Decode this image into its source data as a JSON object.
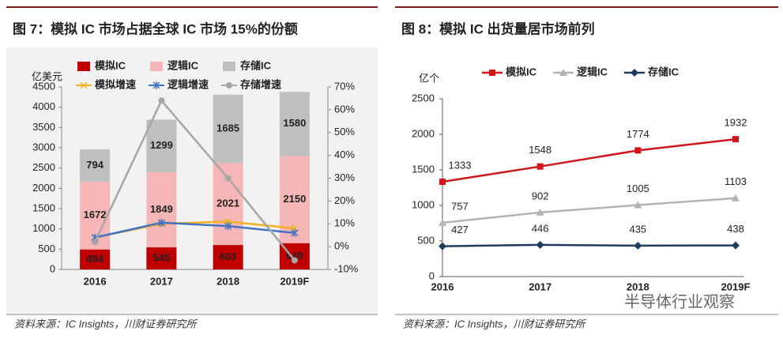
{
  "chart_data": [
    {
      "type": "bar",
      "stacked": true,
      "title": "图 7：模拟 IC 市场占据全球 IC 市场 15%的份额",
      "y_label": "亿美元",
      "categories": [
        "2016",
        "2017",
        "2018",
        "2019F"
      ],
      "series": [
        {
          "name": "模拟IC",
          "color": "#c00000",
          "values": [
            494,
            545,
            603,
            649
          ]
        },
        {
          "name": "逻辑IC",
          "color": "#f4b6b6",
          "values": [
            1672,
            1849,
            2021,
            2150
          ]
        },
        {
          "name": "存储IC",
          "color": "#bfbfbf",
          "values": [
            794,
            1299,
            1685,
            1580
          ]
        },
        {
          "name": "模拟增速",
          "color": "#f0b323",
          "values": [
            4,
            10,
            11,
            8
          ],
          "axis": "y2",
          "type": "line",
          "marker": "x"
        },
        {
          "name": "逻辑增速",
          "color": "#4472c4",
          "values": [
            4,
            10.5,
            9,
            6
          ],
          "axis": "y2",
          "type": "line",
          "marker": "star"
        },
        {
          "name": "存储增速",
          "color": "#a6a6a6",
          "values": [
            2,
            64,
            30,
            -6
          ],
          "axis": "y2",
          "type": "line",
          "marker": "circle"
        }
      ],
      "ylim": [
        0,
        4500
      ],
      "yticks": [
        0,
        500,
        1000,
        1500,
        2000,
        2500,
        3000,
        3500,
        4000,
        4500
      ],
      "y2lim": [
        -10,
        70
      ],
      "y2ticks": [
        {
          "value": -10,
          "label": "-10%"
        },
        {
          "value": 0,
          "label": "0%"
        },
        {
          "value": 10,
          "label": "10%"
        },
        {
          "value": 20,
          "label": "20%"
        },
        {
          "value": 30,
          "label": "30%"
        },
        {
          "value": 40,
          "label": "40%"
        },
        {
          "value": 50,
          "label": "50%"
        },
        {
          "value": 60,
          "label": "60%"
        },
        {
          "value": 70,
          "label": "70%"
        }
      ]
    },
    {
      "type": "line",
      "title": "图 8：模拟 IC 出货量居市场前列",
      "y_label": "亿个",
      "categories": [
        "2016",
        "2017",
        "2018",
        "2019F"
      ],
      "series": [
        {
          "name": "模拟IC",
          "color": "#d0161b",
          "values": [
            1333,
            1548,
            1774,
            1932
          ],
          "marker": "square"
        },
        {
          "name": "逻辑IC",
          "color": "#b3b3b3",
          "values": [
            757,
            902,
            1005,
            1103
          ],
          "marker": "triangle"
        },
        {
          "name": "存储IC",
          "color": "#1f3b5c",
          "values": [
            427,
            446,
            435,
            438
          ],
          "marker": "diamond"
        }
      ],
      "ylim": [
        0,
        2500
      ],
      "yticks": [
        0,
        500,
        1000,
        1500,
        2000,
        2500
      ]
    }
  ],
  "sources": [
    "资料来源：IC Insights，川财证券研究所",
    "资料来源：IC Insights，川财证券研究所"
  ],
  "watermark": "半导体行业观察"
}
